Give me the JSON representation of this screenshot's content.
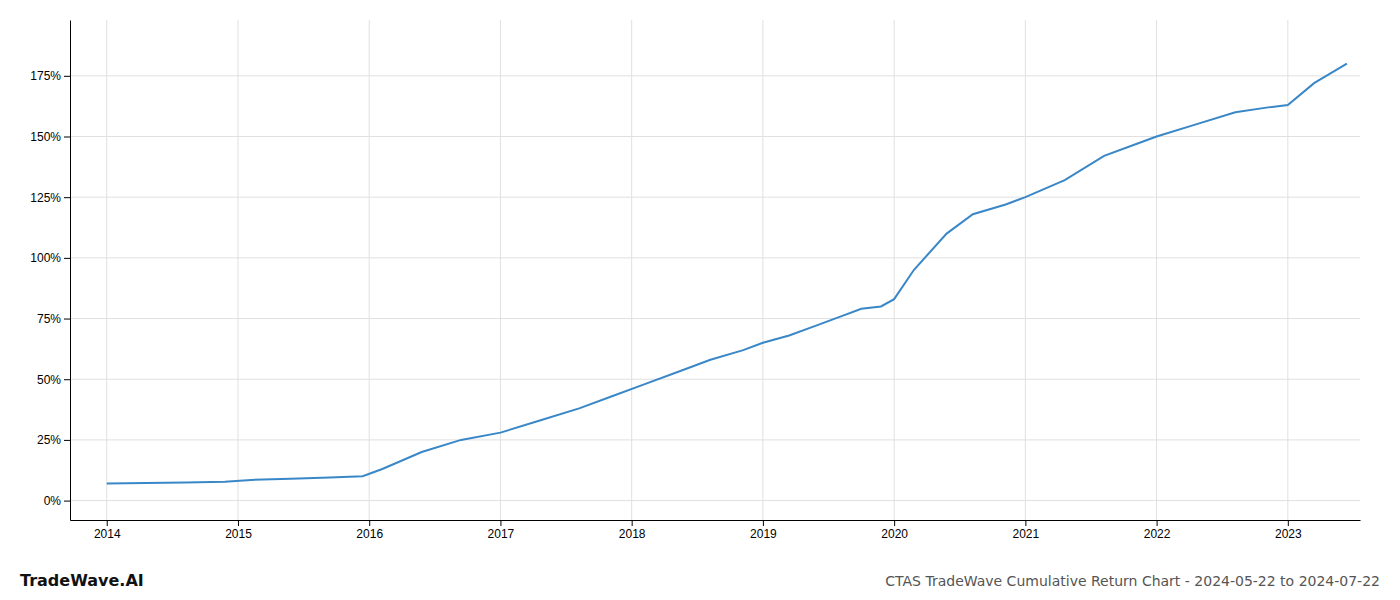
{
  "chart_data": {
    "type": "line",
    "title": "CTAS TradeWave Cumulative Return Chart - 2024-05-22 to 2024-07-22",
    "annotations": [
      "TradeWave.AI"
    ],
    "color": "#3a87c8",
    "grid": true,
    "x": [
      2014.0,
      2014.3,
      2014.6,
      2014.9,
      2015.1,
      2015.4,
      2015.7,
      2015.95,
      2016.1,
      2016.4,
      2016.7,
      2017.0,
      2017.3,
      2017.6,
      2017.85,
      2018.1,
      2018.35,
      2018.6,
      2018.85,
      2019.0,
      2019.2,
      2019.4,
      2019.6,
      2019.75,
      2019.9,
      2020.0,
      2020.15,
      2020.4,
      2020.6,
      2020.85,
      2021.0,
      2021.3,
      2021.6,
      2021.85,
      2022.0,
      2022.3,
      2022.6,
      2022.85,
      2023.0,
      2023.2,
      2023.45
    ],
    "values": [
      7,
      7.2,
      7.5,
      7.8,
      8.5,
      9,
      9.5,
      10,
      13,
      20,
      25,
      28,
      33,
      38,
      43,
      48,
      53,
      58,
      62,
      65,
      68,
      72,
      76,
      79,
      80,
      83,
      95,
      110,
      118,
      122,
      125,
      132,
      142,
      147,
      150,
      155,
      160,
      162,
      163,
      172,
      180
    ],
    "xlim": [
      2013.72,
      2023.55
    ],
    "xticks": [
      2014,
      2015,
      2016,
      2017,
      2018,
      2019,
      2020,
      2021,
      2022,
      2023
    ],
    "ylim": [
      -8,
      198
    ],
    "yticks": [
      {
        "value": 0,
        "label": "0%"
      },
      {
        "value": 25,
        "label": "25%"
      },
      {
        "value": 50,
        "label": "50%"
      },
      {
        "value": 75,
        "label": "75%"
      },
      {
        "value": 100,
        "label": "100%"
      },
      {
        "value": 125,
        "label": "125%"
      },
      {
        "value": 150,
        "label": "150%"
      },
      {
        "value": 175,
        "label": "175%"
      }
    ]
  }
}
